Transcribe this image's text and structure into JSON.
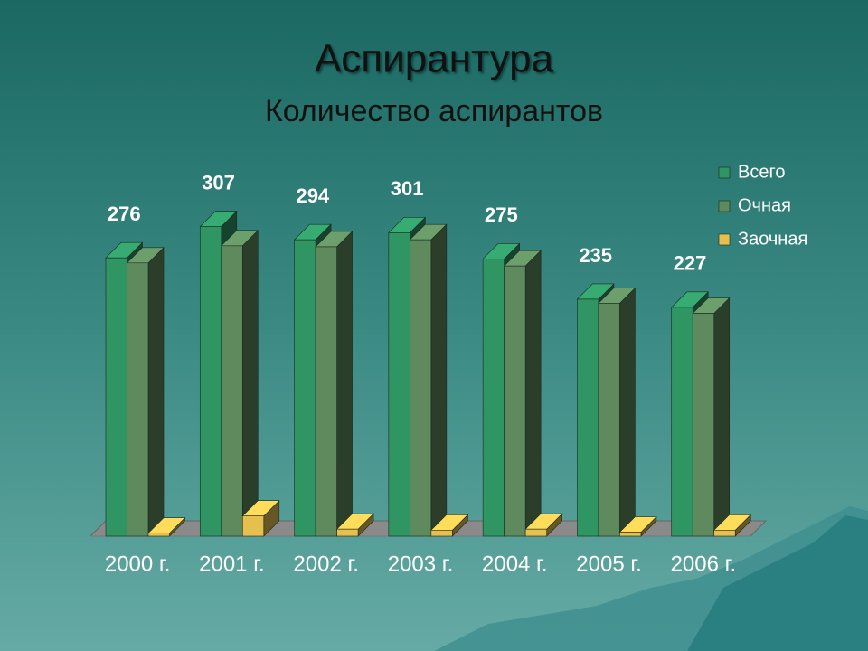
{
  "chart_data": {
    "type": "bar3d",
    "title": "Аспирантура",
    "subtitle": "Количество аспирантов",
    "categories": [
      "2000 г.",
      "2001 г.",
      "2002 г.",
      "2003 г.",
      "2004 г.",
      "2005 г.",
      "2006 г."
    ],
    "series": [
      {
        "name": "Всего",
        "color": "#2f9563",
        "values": [
          276,
          307,
          294,
          301,
          275,
          235,
          227
        ]
      },
      {
        "name": "Очная",
        "color": "#5e8a5e",
        "values": [
          271,
          288,
          287,
          294,
          268,
          231,
          221
        ]
      },
      {
        "name": "Заочная",
        "color": "#e6c04e",
        "values": [
          3,
          20,
          7,
          6,
          7,
          4,
          6
        ]
      }
    ],
    "ylim": [
      0,
      330
    ],
    "legend": "upper right"
  }
}
